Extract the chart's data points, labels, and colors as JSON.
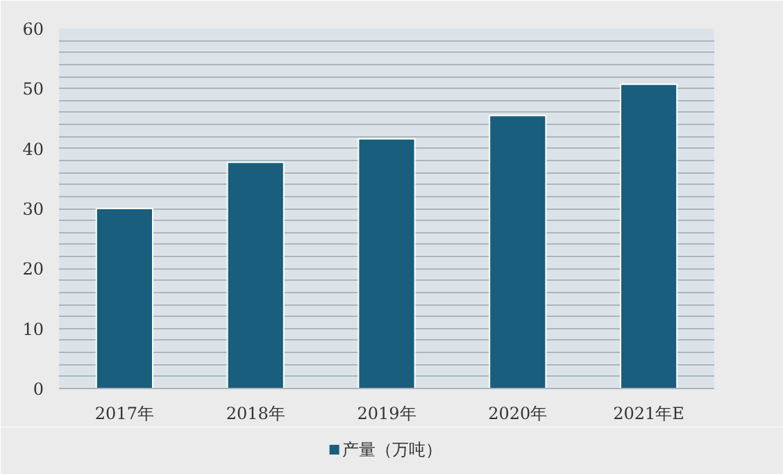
{
  "chart_data": {
    "type": "bar",
    "categories": [
      "2017年",
      "2018年",
      "2019年",
      "2020年",
      "2021年E"
    ],
    "series": [
      {
        "name": "产量（万吨）",
        "color": "#195e7d",
        "values": [
          30,
          37.7,
          41.6,
          45.5,
          50.7
        ]
      }
    ],
    "ylim": [
      0,
      60
    ],
    "yticks": [
      0,
      {
        "value": 2,
        "label": null
      },
      {
        "value": 4,
        "label": null
      },
      {
        "value": 6,
        "label": null
      },
      {
        "value": 8,
        "label": null
      },
      10,
      {
        "value": 12,
        "label": null
      },
      {
        "value": 14,
        "label": null
      },
      {
        "value": 16,
        "label": null
      },
      {
        "value": 18,
        "label": null
      },
      20,
      {
        "value": 22,
        "label": null
      },
      {
        "value": 24,
        "label": null
      },
      {
        "value": 26,
        "label": null
      },
      {
        "value": 28,
        "label": null
      },
      30,
      {
        "value": 32,
        "label": null
      },
      {
        "value": 34,
        "label": null
      },
      {
        "value": 36,
        "label": null
      },
      {
        "value": 38,
        "label": null
      },
      40,
      {
        "value": 42,
        "label": null
      },
      {
        "value": 44,
        "label": null
      },
      {
        "value": 46,
        "label": null
      },
      {
        "value": 48,
        "label": null
      },
      50,
      {
        "value": 52,
        "label": null
      },
      {
        "value": 54,
        "label": null
      },
      {
        "value": 56,
        "label": null
      },
      {
        "value": 58,
        "label": null
      },
      60
    ],
    "grid": "y",
    "legend": "bottom"
  }
}
